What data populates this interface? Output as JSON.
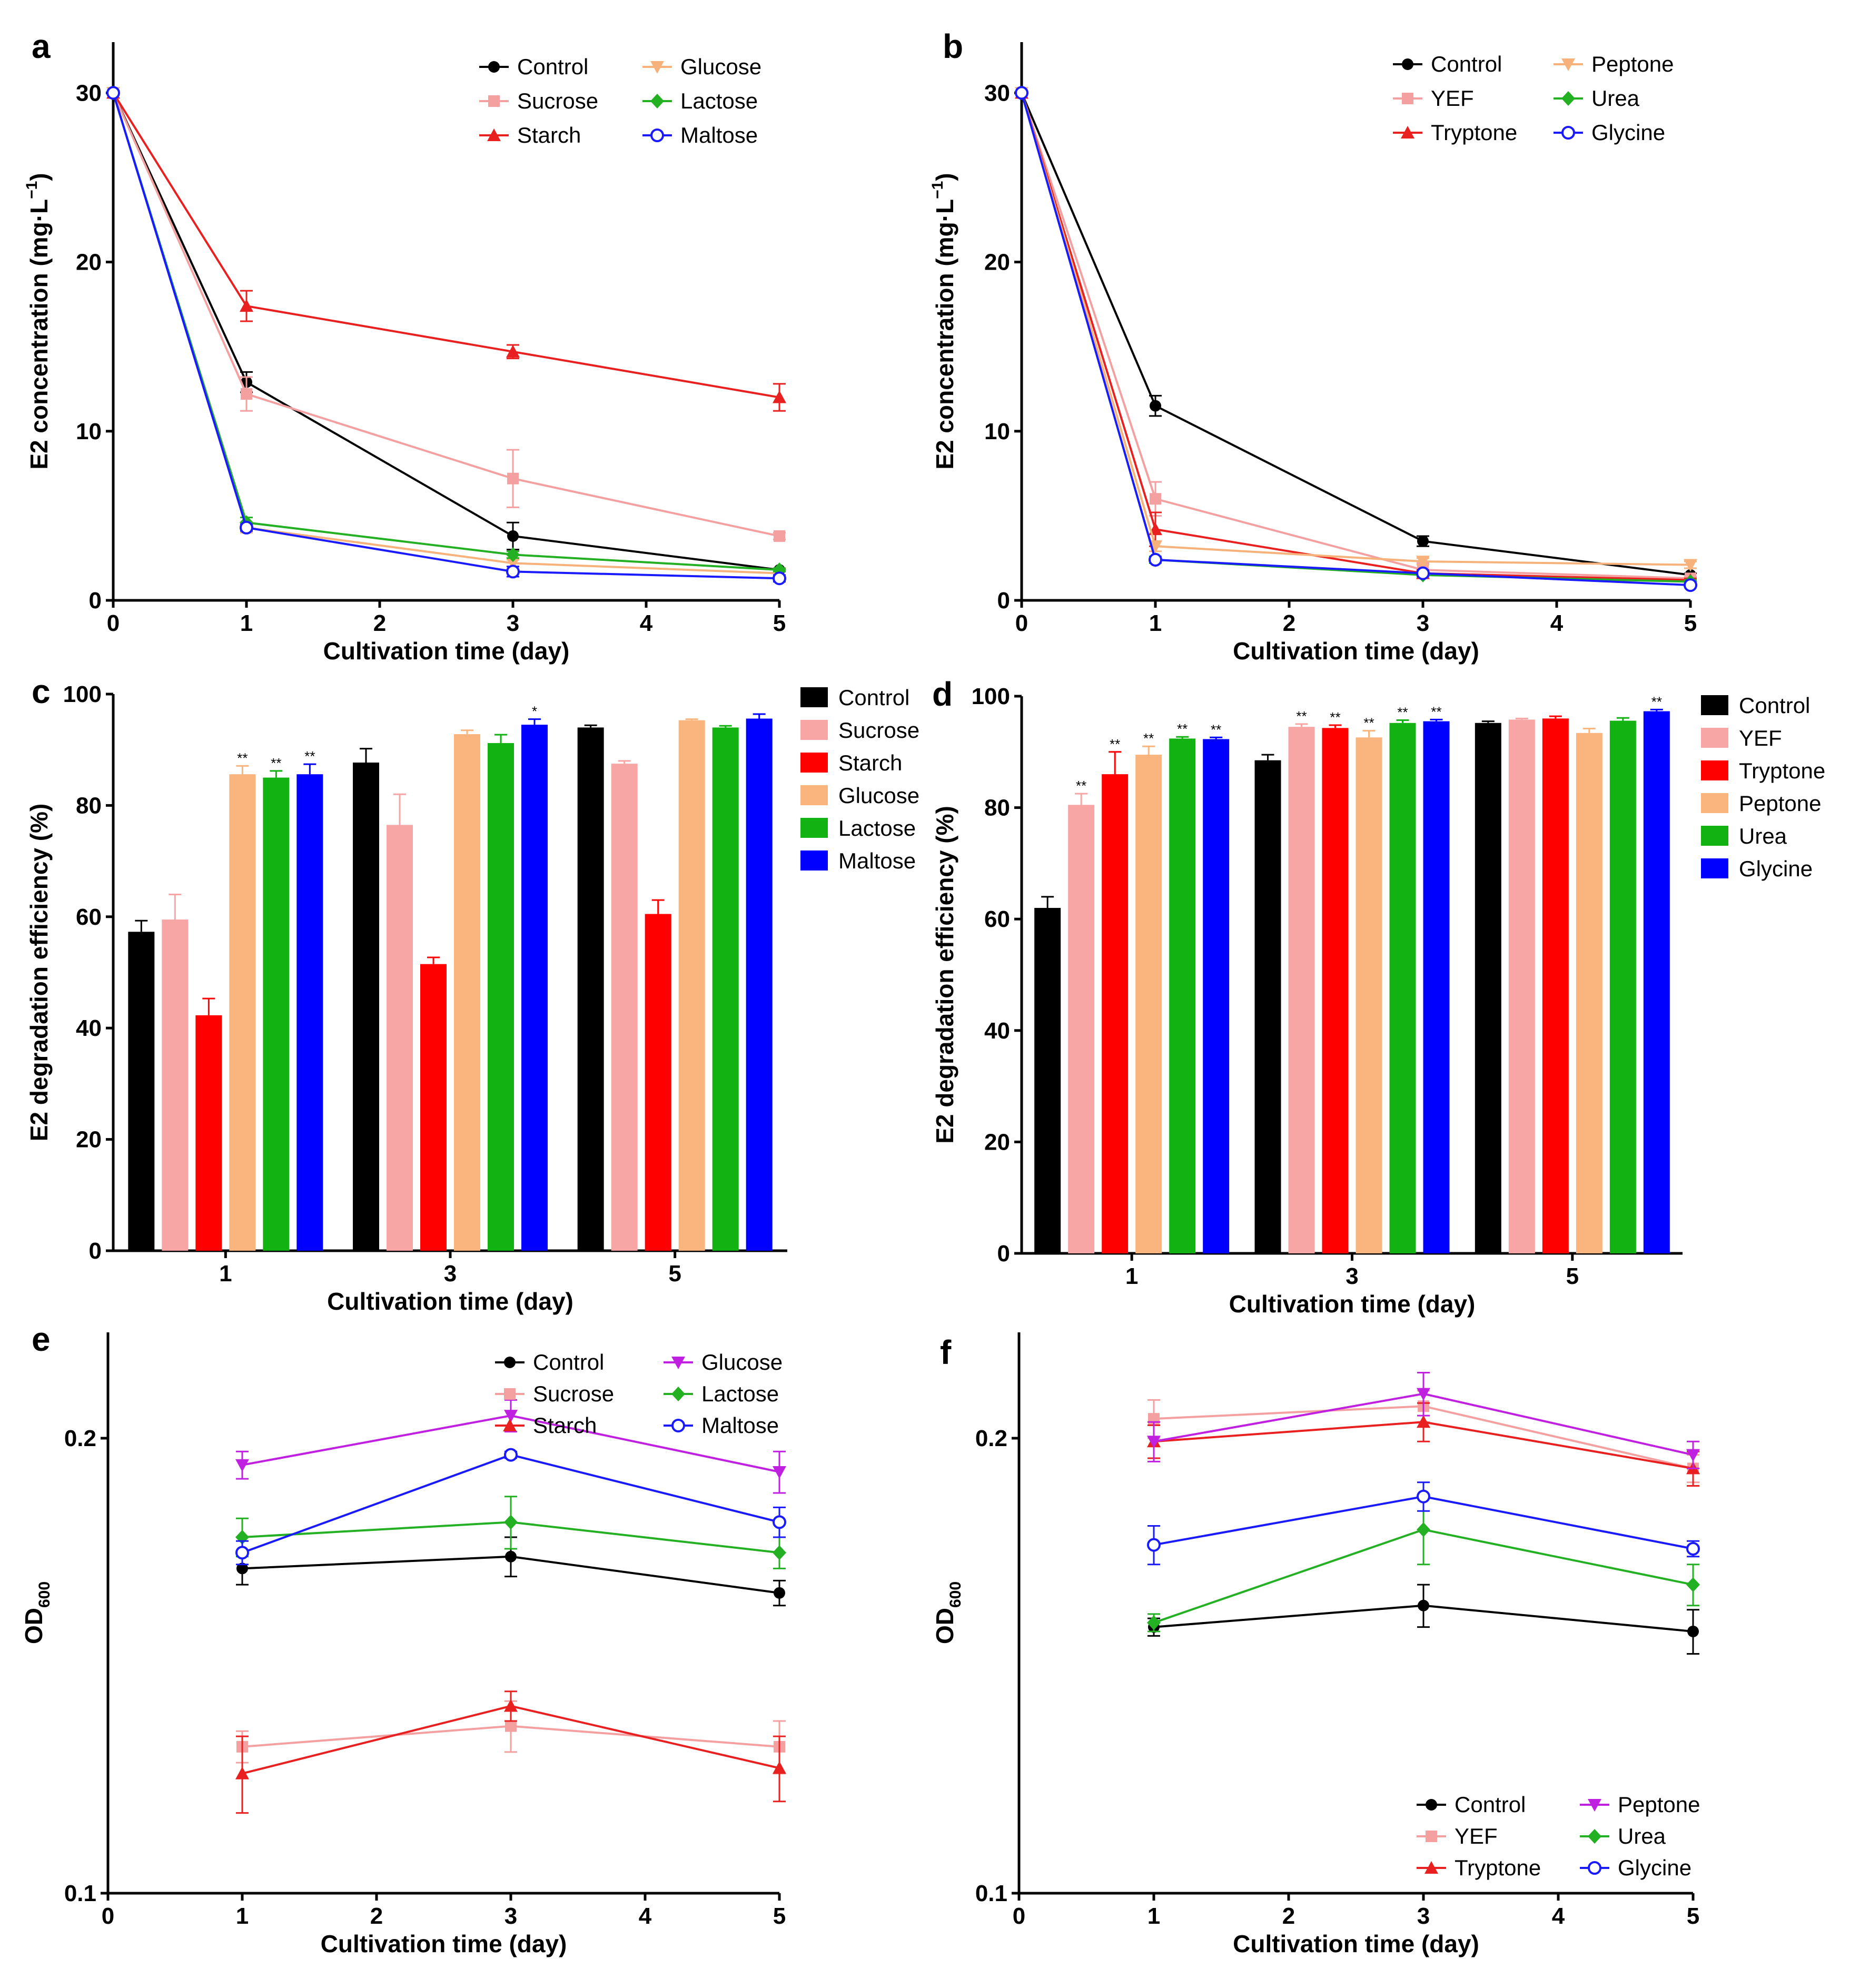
{
  "chart_data": [
    {
      "panel": "a",
      "type": "line",
      "xlabel": "Cultivation time (day)",
      "ylabel": "E2 concentration (mg·L",
      "ylabel_sup": "−1",
      "ylabel_end": ")",
      "x_ticks": [
        "0",
        "1",
        "2",
        "3",
        "4",
        "5"
      ],
      "y_ticks": [
        "0",
        "10",
        "20",
        "30"
      ],
      "xlim": [
        0,
        5
      ],
      "ylim": [
        0,
        33
      ],
      "series": [
        {
          "name": "Control",
          "color": "#000000",
          "marker": "circle",
          "x": [
            0,
            1,
            3,
            5
          ],
          "y": [
            30,
            12.9,
            3.8,
            1.8
          ],
          "err": [
            0,
            0.6,
            0.8,
            0.1
          ]
        },
        {
          "name": "Sucrose",
          "color": "#f4a0a0",
          "marker": "square",
          "x": [
            0,
            1,
            3,
            5
          ],
          "y": [
            30,
            12.2,
            7.2,
            3.8
          ],
          "err": [
            0,
            1.0,
            1.7,
            0.2
          ]
        },
        {
          "name": "Starch",
          "color": "#e82020",
          "marker": "triangle",
          "x": [
            0,
            1,
            3,
            5
          ],
          "y": [
            30,
            17.4,
            14.7,
            12.0
          ],
          "err": [
            0,
            0.9,
            0.4,
            0.8
          ]
        },
        {
          "name": "Glucose",
          "color": "#f6b27a",
          "marker": "triangle-down",
          "x": [
            0,
            1,
            3,
            5
          ],
          "y": [
            30,
            4.3,
            2.2,
            1.6
          ],
          "err": [
            0,
            0.3,
            0.2,
            0.1
          ]
        },
        {
          "name": "Lactose",
          "color": "#23b023",
          "marker": "diamond",
          "x": [
            0,
            1,
            3,
            5
          ],
          "y": [
            30,
            4.6,
            2.7,
            1.8
          ],
          "err": [
            0,
            0.3,
            0.2,
            0.1
          ]
        },
        {
          "name": "Maltose",
          "color": "#1a1aff",
          "marker": "circle-open",
          "x": [
            0,
            1,
            3,
            5
          ],
          "y": [
            30,
            4.3,
            1.7,
            1.3
          ],
          "err": [
            0,
            0.2,
            0.3,
            0.2
          ]
        }
      ]
    },
    {
      "panel": "b",
      "type": "line",
      "xlabel": "Cultivation time (day)",
      "ylabel": "E2 concentration (mg·L",
      "ylabel_sup": "−1",
      "ylabel_end": ")",
      "x_ticks": [
        "0",
        "1",
        "2",
        "3",
        "4",
        "5"
      ],
      "y_ticks": [
        "0",
        "10",
        "20",
        "30"
      ],
      "xlim": [
        0,
        5
      ],
      "ylim": [
        0,
        33
      ],
      "series": [
        {
          "name": "Control",
          "color": "#000000",
          "marker": "circle",
          "x": [
            0,
            1,
            3,
            5
          ],
          "y": [
            30,
            11.5,
            3.5,
            1.5
          ],
          "err": [
            0,
            0.6,
            0.3,
            0.1
          ]
        },
        {
          "name": "YEF",
          "color": "#f4a0a0",
          "marker": "square",
          "x": [
            0,
            1,
            3,
            5
          ],
          "y": [
            30,
            6.0,
            1.8,
            1.3
          ],
          "err": [
            0,
            1.0,
            0.4,
            0.1
          ]
        },
        {
          "name": "Tryptone",
          "color": "#e82020",
          "marker": "triangle",
          "x": [
            0,
            1,
            3,
            5
          ],
          "y": [
            30,
            4.2,
            1.6,
            1.2
          ],
          "err": [
            0,
            1.0,
            0.2,
            0.1
          ]
        },
        {
          "name": "Peptone",
          "color": "#f6b27a",
          "marker": "triangle-down",
          "x": [
            0,
            1,
            3,
            5
          ],
          "y": [
            30,
            3.2,
            2.3,
            2.1
          ],
          "err": [
            0,
            0.3,
            0.2,
            0.2
          ]
        },
        {
          "name": "Urea",
          "color": "#23b023",
          "marker": "diamond",
          "x": [
            0,
            1,
            3,
            5
          ],
          "y": [
            30,
            2.4,
            1.5,
            1.1
          ],
          "err": [
            0,
            0.2,
            0.1,
            0.1
          ]
        },
        {
          "name": "Glycine",
          "color": "#1a1aff",
          "marker": "circle-open",
          "x": [
            0,
            1,
            3,
            5
          ],
          "y": [
            30,
            2.4,
            1.6,
            0.9
          ],
          "err": [
            0,
            0.1,
            0.1,
            0.1
          ]
        }
      ]
    },
    {
      "panel": "c",
      "type": "bar",
      "xlabel": "Cultivation time (day)",
      "ylabel": "E2 degradation efficiency (%)",
      "categories": [
        "1",
        "3",
        "5"
      ],
      "y_ticks": [
        "0",
        "20",
        "40",
        "60",
        "80",
        "100"
      ],
      "ylim": [
        0,
        100
      ],
      "series": [
        {
          "name": "Control",
          "color": "#000000",
          "values": [
            57.3,
            87.7,
            94.0
          ],
          "err": [
            2.0,
            2.5,
            0.4
          ],
          "sig": [
            "",
            "",
            ""
          ]
        },
        {
          "name": "Sucrose",
          "color": "#f7a5a5",
          "values": [
            59.5,
            76.5,
            87.5
          ],
          "err": [
            4.5,
            5.5,
            0.5
          ],
          "sig": [
            "",
            "",
            ""
          ]
        },
        {
          "name": "Starch",
          "color": "#ff0000",
          "values": [
            42.3,
            51.5,
            60.5
          ],
          "err": [
            3.0,
            1.2,
            2.5
          ],
          "sig": [
            "",
            "",
            ""
          ]
        },
        {
          "name": "Glucose",
          "color": "#f9b57d",
          "values": [
            85.6,
            92.8,
            95.3
          ],
          "err": [
            1.5,
            0.7,
            0.2
          ],
          "sig": [
            "**",
            "",
            ""
          ]
        },
        {
          "name": "Lactose",
          "color": "#12b212",
          "values": [
            85.0,
            91.2,
            94.0
          ],
          "err": [
            1.2,
            1.5,
            0.3
          ],
          "sig": [
            "**",
            "",
            ""
          ]
        },
        {
          "name": "Maltose",
          "color": "#0000ff",
          "values": [
            85.6,
            94.5,
            95.6
          ],
          "err": [
            1.8,
            1.0,
            0.8
          ],
          "sig": [
            "**",
            "*",
            ""
          ]
        }
      ]
    },
    {
      "panel": "d",
      "type": "bar",
      "xlabel": "Cultivation time (day)",
      "ylabel": "E2 degradation efficiency (%)",
      "categories": [
        "1",
        "3",
        "5"
      ],
      "y_ticks": [
        "0",
        "20",
        "40",
        "60",
        "80",
        "100"
      ],
      "ylim": [
        0,
        100
      ],
      "series": [
        {
          "name": "Control",
          "color": "#000000",
          "values": [
            62.0,
            88.5,
            95.2
          ],
          "err": [
            2.0,
            1.0,
            0.3
          ],
          "sig": [
            "",
            "",
            ""
          ]
        },
        {
          "name": "YEF",
          "color": "#f7a5a5",
          "values": [
            80.5,
            94.5,
            95.8
          ],
          "err": [
            2.0,
            0.5,
            0.2
          ],
          "sig": [
            "**",
            "**",
            ""
          ]
        },
        {
          "name": "Tryptone",
          "color": "#ff0000",
          "values": [
            86.0,
            94.3,
            96.0
          ],
          "err": [
            4.0,
            0.5,
            0.4
          ],
          "sig": [
            "**",
            "**",
            ""
          ]
        },
        {
          "name": "Peptone",
          "color": "#f9b57d",
          "values": [
            89.5,
            92.6,
            93.4
          ],
          "err": [
            1.5,
            1.2,
            0.8
          ],
          "sig": [
            "**",
            "**",
            ""
          ]
        },
        {
          "name": "Urea",
          "color": "#12b212",
          "values": [
            92.4,
            95.2,
            95.6
          ],
          "err": [
            0.3,
            0.5,
            0.5
          ],
          "sig": [
            "**",
            "**",
            ""
          ]
        },
        {
          "name": "Glycine",
          "color": "#0000ff",
          "values": [
            92.3,
            95.5,
            97.3
          ],
          "err": [
            0.3,
            0.3,
            0.3
          ],
          "sig": [
            "**",
            "**",
            "**"
          ]
        }
      ]
    },
    {
      "panel": "e",
      "type": "line",
      "xlabel": "Cultivation time (day)",
      "ylabel": "OD",
      "ylabel_sub": "600",
      "x_ticks": [
        "0",
        "1",
        "2",
        "3",
        "4",
        "5"
      ],
      "y_ticks": [
        "0.1",
        "0.2"
      ],
      "xlim": [
        0,
        5
      ],
      "ylim": [
        0.1,
        0.235
      ],
      "y_scale": "log",
      "series": [
        {
          "name": "Control",
          "color": "#000000",
          "marker": "circle",
          "x": [
            1,
            3,
            5
          ],
          "y": [
            0.164,
            0.167,
            0.158
          ],
          "err": [
            0.004,
            0.005,
            0.003
          ]
        },
        {
          "name": "Sucrose",
          "color": "#f4a0a0",
          "marker": "square",
          "x": [
            1,
            3,
            5
          ],
          "y": [
            0.125,
            0.129,
            0.125
          ],
          "err": [
            0.003,
            0.005,
            0.005
          ]
        },
        {
          "name": "Starch",
          "color": "#e82020",
          "marker": "triangle",
          "x": [
            1,
            3,
            5
          ],
          "y": [
            0.12,
            0.133,
            0.121
          ],
          "err": [
            0.007,
            0.003,
            0.006
          ]
        },
        {
          "name": "Glucose",
          "color": "#c020e0",
          "marker": "triangle-down",
          "x": [
            1,
            3,
            5
          ],
          "y": [
            0.192,
            0.207,
            0.19
          ],
          "err": [
            0.004,
            0.005,
            0.006
          ]
        },
        {
          "name": "Lactose",
          "color": "#23b023",
          "marker": "diamond",
          "x": [
            1,
            3,
            5
          ],
          "y": [
            0.172,
            0.176,
            0.168
          ],
          "err": [
            0.005,
            0.007,
            0.004
          ]
        },
        {
          "name": "Maltose",
          "color": "#1a1aff",
          "marker": "circle-open",
          "x": [
            1,
            3,
            5
          ],
          "y": [
            0.168,
            0.195,
            0.176
          ],
          "err": [
            0.003,
            0.001,
            0.004
          ]
        }
      ]
    },
    {
      "panel": "f",
      "type": "line",
      "xlabel": "Cultivation time (day)",
      "ylabel": "OD",
      "ylabel_sub": "600",
      "x_ticks": [
        "0",
        "1",
        "2",
        "3",
        "4",
        "5"
      ],
      "y_ticks": [
        "0.1",
        "0.2"
      ],
      "xlim": [
        0,
        5
      ],
      "ylim": [
        0.1,
        0.235
      ],
      "y_scale": "log",
      "series": [
        {
          "name": "Control",
          "color": "#000000",
          "marker": "circle",
          "x": [
            1,
            3,
            5
          ],
          "y": [
            0.15,
            0.155,
            0.149
          ],
          "err": [
            0.002,
            0.005,
            0.005
          ]
        },
        {
          "name": "YEF",
          "color": "#f4a0a0",
          "marker": "square",
          "x": [
            1,
            3,
            5
          ],
          "y": [
            0.206,
            0.21,
            0.191
          ],
          "err": [
            0.006,
            0.005,
            0.004
          ]
        },
        {
          "name": "Tryptone",
          "color": "#e82020",
          "marker": "triangle",
          "x": [
            1,
            3,
            5
          ],
          "y": [
            0.199,
            0.205,
            0.191
          ],
          "err": [
            0.005,
            0.006,
            0.005
          ]
        },
        {
          "name": "Peptone",
          "color": "#c020e0",
          "marker": "triangle-down",
          "x": [
            1,
            3,
            5
          ],
          "y": [
            0.199,
            0.214,
            0.195
          ],
          "err": [
            0.006,
            0.007,
            0.004
          ]
        },
        {
          "name": "Urea",
          "color": "#23b023",
          "marker": "diamond",
          "x": [
            1,
            3,
            5
          ],
          "y": [
            0.151,
            0.174,
            0.16
          ],
          "err": [
            0.002,
            0.009,
            0.005
          ]
        },
        {
          "name": "Glycine",
          "color": "#1a1aff",
          "marker": "circle-open",
          "x": [
            1,
            3,
            5
          ],
          "y": [
            0.17,
            0.183,
            0.169
          ],
          "err": [
            0.005,
            0.004,
            0.002
          ]
        }
      ]
    }
  ]
}
